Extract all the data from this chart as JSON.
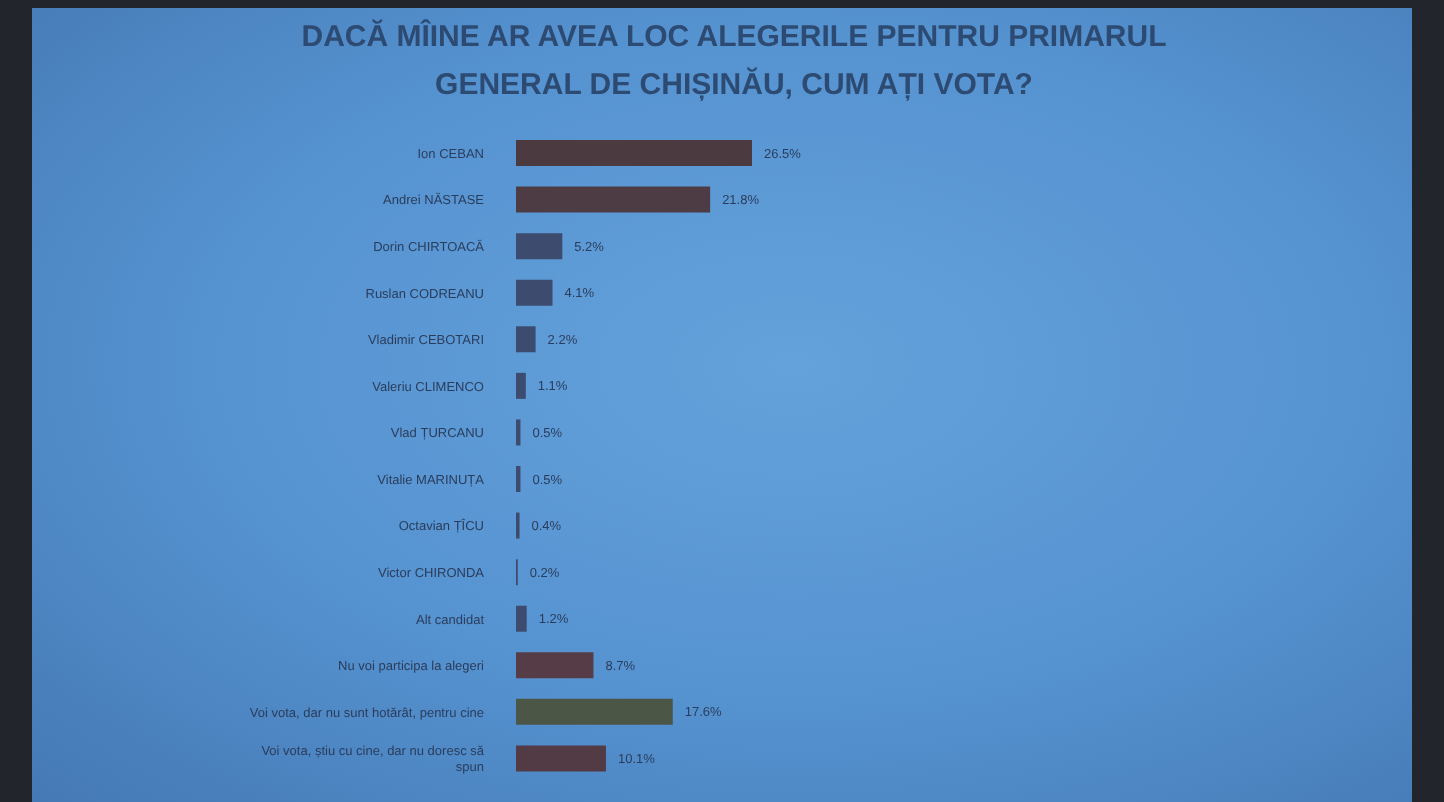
{
  "chart_data": {
    "type": "bar",
    "orientation": "horizontal",
    "title": "DACĂ MÎINE AR AVEA LOC ALEGERILE PENTRU PRIMARUL GENERAL DE CHIȘINĂU, CUM AȚI VOTA?",
    "categories": [
      "Ion CEBAN",
      "Andrei NĂSTASE",
      "Dorin CHIRTOACĂ",
      "Ruslan CODREANU",
      "Vladimir CEBOTARI",
      "Valeriu CLIMENCO",
      "Vlad ȚURCANU",
      "Vitalie MARINUȚA",
      "Octavian ȚÎCU",
      "Victor CHIRONDA",
      "Alt candidat",
      "Nu voi participa la alegeri",
      "Voi vota, dar nu sunt hotărât, pentru cine",
      "Voi vota, știu cu cine, dar nu doresc să spun"
    ],
    "values": [
      26.5,
      21.8,
      5.2,
      4.1,
      2.2,
      1.1,
      0.5,
      0.5,
      0.4,
      0.2,
      1.2,
      8.7,
      17.6,
      10.1
    ],
    "value_labels": [
      "26.5%",
      "21.8%",
      "5.2%",
      "4.1%",
      "2.2%",
      "1.1%",
      "0.5%",
      "0.5%",
      "0.4%",
      "0.2%",
      "1.2%",
      "8.7%",
      "17.6%",
      "10.1%"
    ],
    "colors": [
      "#4b3b41",
      "#4d3c43",
      "#3d4b6e",
      "#3d4b6e",
      "#3d4b6e",
      "#3d4b6e",
      "#3d4b6e",
      "#3d4b6e",
      "#3d4b6e",
      "#3d4b6e",
      "#3d4b6e",
      "#563c46",
      "#4b5646",
      "#533b45"
    ],
    "tick_labels": "y"
  }
}
